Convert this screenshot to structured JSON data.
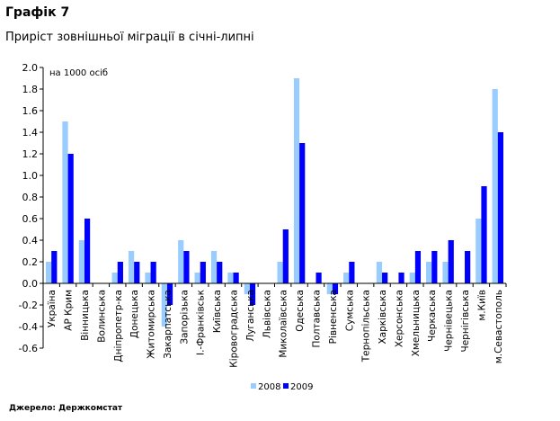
{
  "chart_data": {
    "type": "bar",
    "title": "Графік 7",
    "subtitle": "Приріст зовнішньої міграції в січні-липні",
    "unit_label": "на 1000 осіб",
    "source": "Джерело: Держкомстат",
    "ylim": [
      -0.6,
      2.0
    ],
    "yticks": [
      "2.0",
      "1.8",
      "1.6",
      "1.4",
      "1.2",
      "1.0",
      "0.8",
      "0.6",
      "0.4",
      "0.2",
      "0.0",
      "-0.2",
      "-0.4",
      "-0.6"
    ],
    "grid": false,
    "legend_position": "bottom",
    "categories": [
      "Україна",
      "АР Крим",
      "Вінницька",
      "Волинська",
      "Дніпропетр-ка",
      "Донецька",
      "Житомирська",
      "Закарпатська",
      "Запорізька",
      "І.-Франківськ",
      "Київська",
      "Кіровоградська",
      "Луганська",
      "Львівська",
      "Миколаївська",
      "Одеська",
      "Полтавська",
      "Рівненська",
      "Сумська",
      "Тернопільська",
      "Харківська",
      "Херсонська",
      "Хмельницька",
      "Черкаська",
      "Чернівецька",
      "Чернігівська",
      "м.Київ",
      "м.Севастополь"
    ],
    "series": [
      {
        "name": "2008",
        "color": "#99ccff",
        "values": [
          0.2,
          1.5,
          0.4,
          0.0,
          0.1,
          0.3,
          0.1,
          -0.4,
          0.4,
          0.1,
          0.3,
          0.1,
          -0.1,
          0.0,
          0.2,
          1.9,
          0.0,
          -0.1,
          0.1,
          0.0,
          0.2,
          0.0,
          0.1,
          0.2,
          0.2,
          0.0,
          0.6,
          1.8
        ]
      },
      {
        "name": "2009",
        "color": "#0000ff",
        "values": [
          0.3,
          1.2,
          0.6,
          0.0,
          0.2,
          0.2,
          0.2,
          -0.2,
          0.3,
          0.2,
          0.2,
          0.1,
          -0.2,
          0.0,
          0.5,
          1.3,
          0.1,
          -0.1,
          0.2,
          0.0,
          0.1,
          0.1,
          0.3,
          0.3,
          0.4,
          0.3,
          0.9,
          1.4
        ]
      }
    ]
  }
}
